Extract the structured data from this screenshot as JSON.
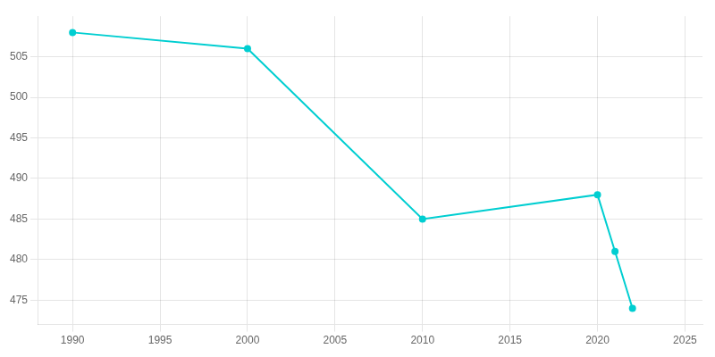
{
  "chart_data": {
    "type": "line",
    "x": [
      1990,
      2000,
      2010,
      2020,
      2021,
      2022
    ],
    "values": [
      508,
      506,
      485,
      488,
      481,
      474
    ],
    "color": "#00CED1",
    "marker": "circle",
    "xlim": [
      1988,
      2026
    ],
    "xticks": [
      1990,
      1995,
      2000,
      2005,
      2010,
      2015,
      2020,
      2025
    ],
    "ylim": [
      472,
      510
    ],
    "yticks": [
      475,
      480,
      485,
      490,
      495,
      500,
      505
    ],
    "grid": true
  }
}
